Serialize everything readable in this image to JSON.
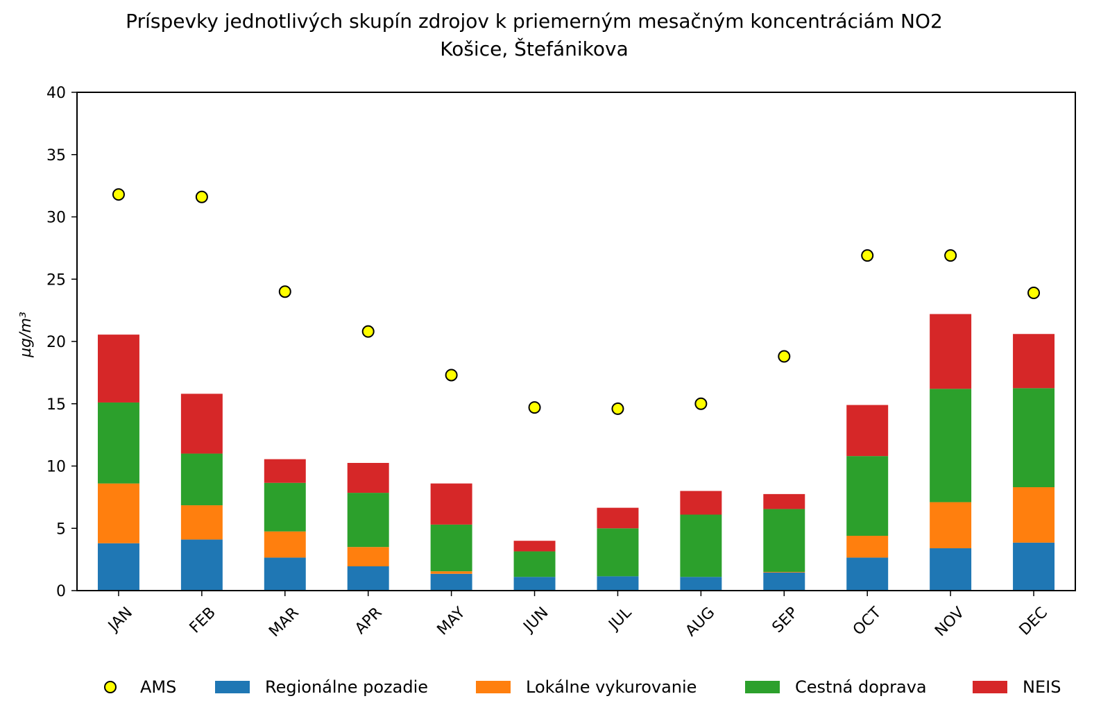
{
  "chart_data": {
    "type": "bar",
    "stacked": true,
    "title": "Príspevky jednotlivých skupín zdrojov k priemerným mesačným koncentráciám NO2",
    "subtitle": "Košice, Štefánikova",
    "xlabel": "",
    "ylabel": "µg/m³",
    "ylim": [
      0,
      40
    ],
    "yticks": [
      0,
      5,
      10,
      15,
      20,
      25,
      30,
      35,
      40
    ],
    "categories": [
      "JAN",
      "FEB",
      "MAR",
      "APR",
      "MAY",
      "JUN",
      "JUL",
      "AUG",
      "SEP",
      "OCT",
      "NOV",
      "DEC"
    ],
    "series": [
      {
        "name": "Regionálne pozadie",
        "color": "#1f77b4",
        "values": [
          3.8,
          4.1,
          2.65,
          1.95,
          1.35,
          1.1,
          1.15,
          1.1,
          1.45,
          2.65,
          3.4,
          3.85
        ]
      },
      {
        "name": "Lokálne vykurovanie",
        "color": "#ff7f0e",
        "values": [
          4.8,
          2.75,
          2.1,
          1.55,
          0.2,
          0.0,
          0.0,
          0.0,
          0.05,
          1.75,
          3.7,
          4.45
        ]
      },
      {
        "name": "Cestná doprava",
        "color": "#2ca02c",
        "values": [
          6.5,
          4.15,
          3.9,
          4.35,
          3.75,
          2.05,
          3.85,
          5.0,
          5.05,
          6.4,
          9.1,
          7.95
        ]
      },
      {
        "name": "NEIS",
        "color": "#d62728",
        "values": [
          5.45,
          4.8,
          1.9,
          2.4,
          3.3,
          0.85,
          1.65,
          1.9,
          1.2,
          4.1,
          6.0,
          4.35
        ]
      }
    ],
    "points": {
      "name": "AMS",
      "color": "#ffff00",
      "values": [
        31.8,
        31.6,
        24.0,
        20.8,
        17.3,
        14.7,
        14.6,
        15.0,
        18.8,
        26.9,
        26.9,
        23.9
      ]
    },
    "legend_position": "bottom"
  }
}
